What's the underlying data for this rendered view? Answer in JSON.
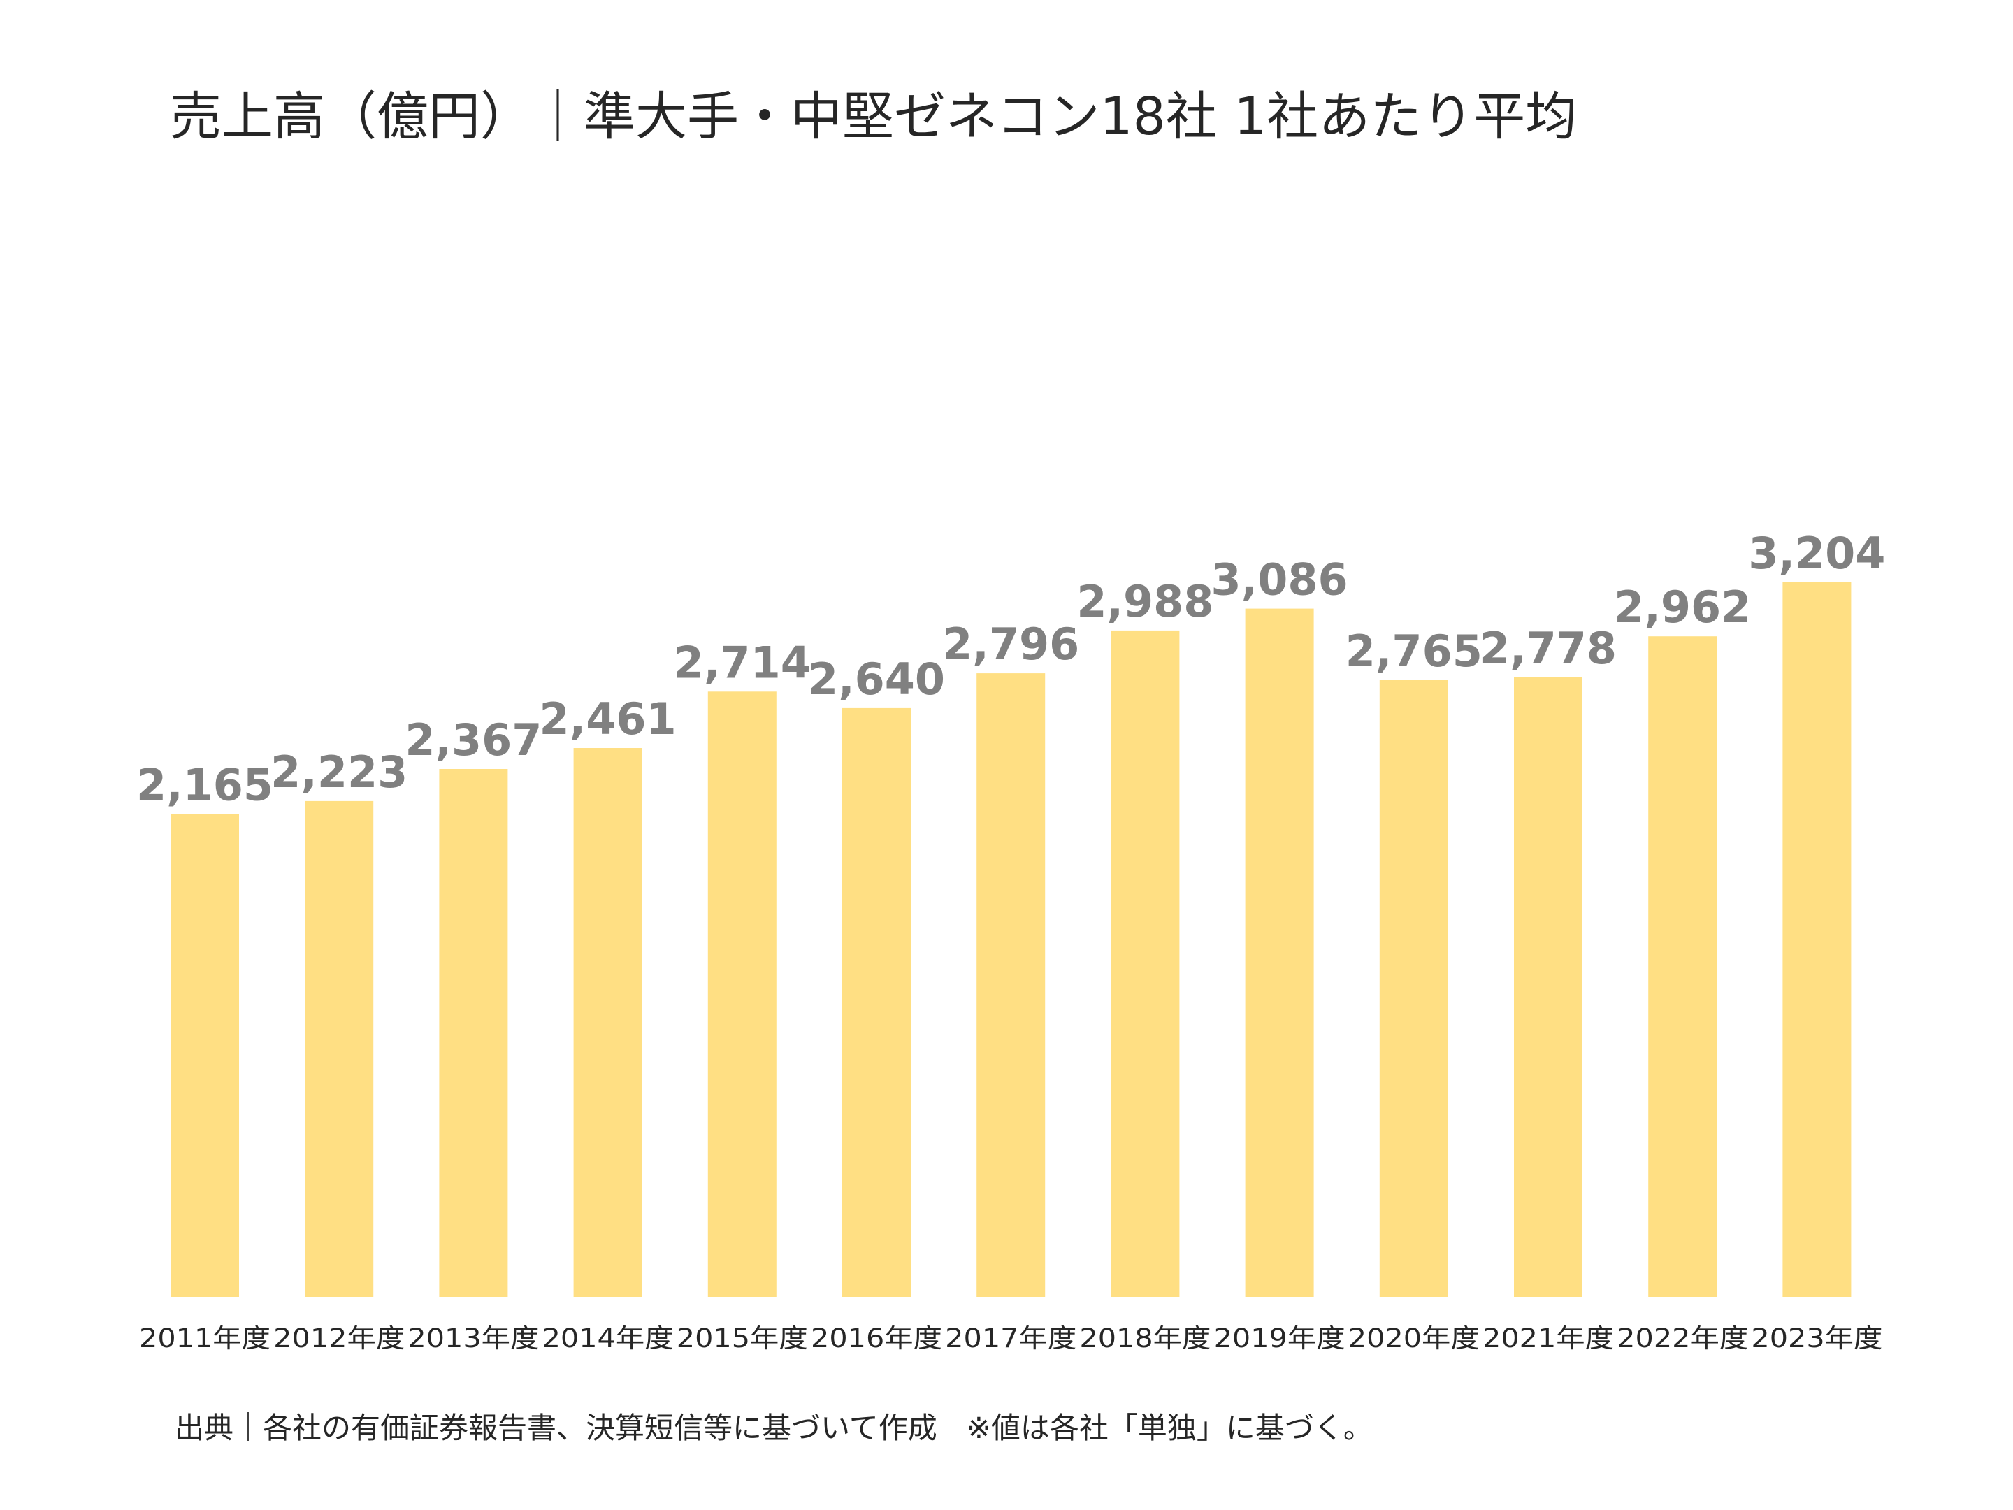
{
  "chart_data": {
    "type": "bar",
    "title": "売上高（億円）｜準大手・中堅ゼネコン18社 1社あたり平均",
    "categories": [
      "2011年度",
      "2012年度",
      "2013年度",
      "2014年度",
      "2015年度",
      "2016年度",
      "2017年度",
      "2018年度",
      "2019年度",
      "2020年度",
      "2021年度",
      "2022年度",
      "2023年度"
    ],
    "values": [
      2165,
      2223,
      2367,
      2461,
      2714,
      2640,
      2796,
      2988,
      3086,
      2765,
      2778,
      2962,
      3204
    ],
    "value_labels": [
      "2,165",
      "2,223",
      "2,367",
      "2,461",
      "2,714",
      "2,640",
      "2,796",
      "2,988",
      "3,086",
      "2,765",
      "2,778",
      "2,962",
      "3,204"
    ],
    "ylim": [
      0,
      3204
    ],
    "grid": false,
    "bar_color": "#FFDF83",
    "label_color": "#808080",
    "text_color": "#262626",
    "source": "出典｜各社の有価証券報告書、決算短信等に基づいて作成　※値は各社「単独」に基づく。"
  }
}
